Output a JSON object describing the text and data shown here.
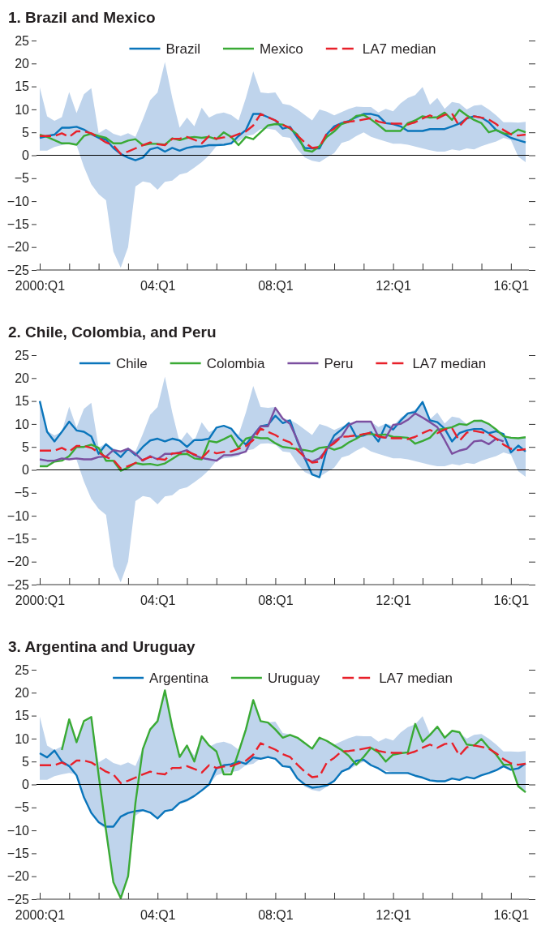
{
  "chart_data": [
    {
      "type": "line",
      "title": "1. Brazil and Mexico",
      "legend": "top",
      "ylim": [
        -25,
        25
      ],
      "yticks": [
        25,
        20,
        15,
        10,
        5,
        0,
        {
          "value": -5,
          "label": "−5"
        },
        {
          "value": -10,
          "label": "−10"
        },
        {
          "value": -15,
          "label": "−15"
        },
        {
          "value": -20,
          "label": "−20"
        },
        {
          "value": -25,
          "label": "−25"
        }
      ],
      "ref_lines": [
        {
          "axis": "y",
          "value": 0,
          "color": "#000000"
        }
      ],
      "categories": [
        "2000:Q1",
        null,
        null,
        null,
        null,
        null,
        null,
        null,
        null,
        null,
        null,
        null,
        null,
        null,
        null,
        null,
        "04:Q1",
        null,
        null,
        null,
        null,
        null,
        null,
        null,
        null,
        null,
        null,
        null,
        null,
        null,
        null,
        null,
        "08:Q1",
        null,
        null,
        null,
        null,
        null,
        null,
        null,
        null,
        null,
        null,
        null,
        null,
        null,
        null,
        null,
        "12:Q1",
        null,
        null,
        null,
        null,
        null,
        null,
        null,
        null,
        null,
        null,
        null,
        null,
        null,
        null,
        null,
        "16:Q1",
        null,
        null
      ],
      "series": [
        {
          "name": "Brazil",
          "color": "#0a75bb",
          "line_style": "solid",
          "values": [
            3.8,
            4.2,
            4.5,
            6.0,
            6.0,
            6.2,
            5.6,
            4.6,
            3.8,
            3.4,
            1.6,
            0.3,
            -0.5,
            -1.1,
            -0.5,
            1.3,
            1.7,
            0.8,
            1.6,
            1.0,
            1.6,
            1.9,
            1.9,
            2.2,
            2.2,
            2.3,
            2.6,
            4.2,
            5.5,
            9.0,
            9.0,
            8.3,
            7.6,
            5.8,
            6.2,
            3.8,
            1.6,
            1.5,
            1.5,
            4.6,
            6.3,
            7.0,
            7.5,
            8.3,
            9.0,
            9.0,
            8.6,
            7.0,
            6.8,
            6.3,
            5.3,
            5.3,
            5.3,
            5.7,
            5.7,
            5.7,
            6.3,
            6.9,
            8.0,
            8.5,
            8.2,
            7.2,
            5.5,
            4.7,
            3.8,
            3.3,
            2.8
          ]
        },
        {
          "name": "Mexico",
          "color": "#3aaa35",
          "line_style": "solid",
          "values": [
            4.5,
            4.0,
            3.3,
            2.6,
            2.6,
            2.3,
            4.2,
            4.7,
            4.2,
            3.8,
            2.6,
            2.6,
            3.2,
            3.5,
            2.2,
            2.5,
            2.5,
            2.3,
            3.7,
            3.3,
            3.8,
            4.0,
            3.8,
            4.0,
            3.5,
            5.0,
            4.0,
            2.2,
            4.0,
            3.5,
            5.0,
            6.5,
            6.8,
            6.7,
            5.8,
            4.5,
            1.1,
            0.8,
            2.0,
            4.0,
            5.2,
            6.8,
            7.3,
            8.6,
            8.8,
            7.8,
            6.6,
            5.3,
            5.3,
            5.3,
            7.0,
            7.6,
            8.5,
            8.2,
            8.3,
            9.3,
            7.7,
            9.9,
            8.7,
            7.7,
            7.0,
            5.0,
            5.5,
            4.8,
            4.6,
            5.6,
            5.0
          ]
        },
        {
          "name": "LA7 median",
          "color": "#e8202a",
          "line_style": "dashed",
          "values": [
            4.2,
            4.2,
            4.2,
            4.8,
            4.0,
            5.2,
            5.2,
            4.8,
            3.8,
            2.8,
            2.2,
            0.3,
            0.8,
            1.5,
            2.2,
            2.8,
            2.4,
            2.2,
            3.6,
            3.6,
            4.0,
            3.4,
            2.6,
            4.2,
            3.6,
            3.9,
            4.0,
            4.6,
            5.2,
            6.5,
            9.0,
            8.3,
            7.6,
            6.6,
            6.0,
            4.3,
            2.8,
            1.6,
            1.8,
            4.8,
            5.8,
            7.2,
            7.3,
            7.5,
            7.8,
            8.1,
            7.3,
            7.0,
            6.9,
            6.9,
            6.7,
            7.2,
            8.0,
            8.7,
            8.0,
            8.8,
            9.1,
            6.3,
            8.1,
            8.5,
            8.2,
            7.8,
            6.8,
            5.5,
            4.6,
            4.3,
            4.5
          ],
          "lower": [
            1.0,
            1.0,
            1.8,
            2.2,
            2.5,
            2.2,
            -2.5,
            -6.3,
            -8.5,
            -9.8,
            -21.0,
            -24.5,
            -20.0,
            -6.8,
            -5.7,
            -6.0,
            -7.5,
            -5.8,
            -5.5,
            -4.2,
            -3.8,
            -2.7,
            -1.5,
            0.0,
            2.0,
            2.5,
            2.7,
            3.0,
            4.2,
            4.5,
            5.7,
            5.8,
            5.5,
            4.0,
            3.8,
            1.3,
            -0.5,
            -1.2,
            -1.5,
            -0.5,
            0.5,
            2.7,
            3.2,
            4.2,
            5.0,
            4.0,
            3.5,
            3.0,
            2.5,
            2.5,
            2.3,
            1.9,
            1.5,
            1.1,
            0.8,
            0.8,
            1.3,
            1.0,
            1.5,
            1.3,
            2.0,
            2.5,
            3.0,
            3.8,
            3.3,
            -0.3,
            -1.5
          ],
          "upper": [
            14.8,
            8.5,
            7.5,
            8.3,
            13.8,
            9.2,
            13.3,
            14.6,
            4.8,
            5.8,
            4.7,
            4.2,
            4.8,
            4.0,
            7.8,
            12.0,
            13.7,
            20.3,
            12.5,
            6.0,
            8.2,
            6.3,
            10.4,
            8.2,
            9.0,
            9.3,
            8.8,
            7.6,
            12.5,
            18.3,
            13.7,
            13.5,
            13.7,
            11.2,
            10.9,
            10.0,
            8.8,
            7.6,
            10.0,
            9.5,
            8.7,
            9.4,
            10.1,
            10.6,
            10.5,
            10.5,
            9.3,
            10.1,
            9.6,
            11.3,
            12.5,
            13.1,
            14.9,
            11.0,
            12.5,
            10.1,
            11.6,
            11.3,
            10.0,
            10.8,
            11.0,
            10.0,
            8.7,
            7.2,
            7.2,
            7.1,
            7.3
          ]
        }
      ]
    },
    {
      "type": "line",
      "title": "2. Chile, Colombia, and Peru",
      "legend": "top",
      "ylim": [
        -25,
        25
      ],
      "yticks": [
        25,
        20,
        15,
        10,
        5,
        0,
        {
          "value": -5,
          "label": "−5"
        },
        {
          "value": -10,
          "label": "−10"
        },
        {
          "value": -15,
          "label": "−15"
        },
        {
          "value": -20,
          "label": "−20"
        },
        {
          "value": -25,
          "label": "−25"
        }
      ],
      "ref_lines": [
        {
          "axis": "y",
          "value": 0,
          "color": "#000000"
        }
      ],
      "categories": [
        "2000:Q1",
        null,
        null,
        null,
        null,
        null,
        null,
        null,
        null,
        null,
        null,
        null,
        null,
        null,
        null,
        null,
        "04:Q1",
        null,
        null,
        null,
        null,
        null,
        null,
        null,
        null,
        null,
        null,
        null,
        null,
        null,
        null,
        null,
        "08:Q1",
        null,
        null,
        null,
        null,
        null,
        null,
        null,
        null,
        null,
        null,
        null,
        null,
        null,
        null,
        null,
        "12:Q1",
        null,
        null,
        null,
        null,
        null,
        null,
        null,
        null,
        null,
        null,
        null,
        null,
        null,
        null,
        null,
        "16:Q1",
        null,
        null
      ],
      "series": [
        {
          "name": "Chile",
          "color": "#0a75bb",
          "line_style": "solid",
          "values": [
            15.0,
            8.3,
            6.2,
            8.3,
            10.5,
            8.6,
            8.3,
            7.3,
            3.5,
            5.6,
            4.2,
            2.8,
            4.6,
            3.2,
            5.0,
            6.4,
            6.8,
            6.2,
            6.8,
            6.4,
            5.0,
            6.5,
            6.5,
            6.8,
            9.2,
            9.6,
            9.0,
            7.0,
            5.5,
            7.5,
            9.5,
            9.8,
            11.8,
            10.2,
            10.8,
            6.2,
            2.5,
            -1.0,
            -1.6,
            4.5,
            7.5,
            8.8,
            10.2,
            7.2,
            7.5,
            8.2,
            6.2,
            9.8,
            8.8,
            10.7,
            12.3,
            12.6,
            14.8,
            10.8,
            10.4,
            9.0,
            6.2,
            8.0,
            8.6,
            8.9,
            8.9,
            8.0,
            8.4,
            7.8,
            3.8,
            5.3,
            4.0
          ]
        },
        {
          "name": "Colombia",
          "color": "#3aaa35",
          "line_style": "solid",
          "values": [
            0.8,
            0.8,
            1.8,
            2.0,
            3.0,
            5.0,
            5.0,
            5.5,
            4.8,
            2.0,
            2.0,
            -0.2,
            0.5,
            1.5,
            1.2,
            1.3,
            1.0,
            1.4,
            2.4,
            3.4,
            3.5,
            2.5,
            2.3,
            6.3,
            6.0,
            6.7,
            7.5,
            4.8,
            6.8,
            7.2,
            6.9,
            6.9,
            5.8,
            5.0,
            4.8,
            4.5,
            4.3,
            4.0,
            4.8,
            5.0,
            4.4,
            4.9,
            6.0,
            6.8,
            7.8,
            7.8,
            7.6,
            7.7,
            7.2,
            7.1,
            7.0,
            5.7,
            6.3,
            7.0,
            8.7,
            9.0,
            9.3,
            10.0,
            9.8,
            10.7,
            10.7,
            10.0,
            8.8,
            7.3,
            7.0,
            6.9,
            7.1
          ]
        },
        {
          "name": "Peru",
          "color": "#7b4fa0",
          "line_style": "solid",
          "values": [
            2.3,
            2.0,
            2.0,
            2.5,
            2.3,
            2.5,
            2.3,
            2.3,
            2.8,
            2.9,
            4.3,
            4.0,
            4.6,
            3.5,
            2.0,
            3.0,
            2.3,
            3.5,
            3.5,
            3.8,
            4.3,
            3.2,
            2.6,
            2.3,
            2.0,
            3.2,
            3.2,
            3.5,
            4.0,
            7.4,
            9.5,
            9.5,
            13.5,
            11.2,
            10.0,
            6.5,
            2.5,
            1.8,
            2.5,
            4.5,
            6.3,
            7.3,
            9.8,
            10.5,
            10.5,
            10.5,
            7.2,
            7.0,
            9.8,
            10.0,
            10.9,
            12.3,
            11.4,
            10.4,
            9.3,
            6.5,
            3.5,
            4.2,
            4.6,
            6.2,
            6.4,
            5.6,
            6.8,
            6.2,
            null,
            null,
            null
          ]
        },
        {
          "name": "LA7 median",
          "color": "#e8202a",
          "line_style": "dashed",
          "values": [
            4.2,
            4.2,
            4.2,
            4.8,
            4.0,
            5.2,
            5.2,
            4.8,
            3.8,
            2.8,
            2.2,
            0.3,
            0.8,
            1.5,
            2.2,
            2.8,
            2.4,
            2.2,
            3.6,
            3.6,
            4.0,
            3.4,
            2.6,
            4.2,
            3.6,
            3.9,
            4.0,
            4.6,
            5.2,
            6.5,
            9.0,
            8.3,
            7.6,
            6.6,
            6.0,
            4.3,
            2.8,
            1.6,
            1.8,
            4.8,
            5.8,
            7.2,
            7.3,
            7.5,
            7.8,
            8.1,
            7.3,
            7.0,
            6.9,
            6.9,
            6.7,
            7.2,
            8.0,
            8.7,
            8.0,
            8.8,
            9.1,
            6.3,
            8.1,
            8.5,
            8.2,
            7.8,
            6.8,
            5.5,
            4.6,
            4.3,
            4.5
          ],
          "lower": [
            1.0,
            1.0,
            1.8,
            2.2,
            2.5,
            2.2,
            -2.5,
            -6.3,
            -8.5,
            -9.8,
            -21.0,
            -24.5,
            -20.0,
            -6.8,
            -5.7,
            -6.0,
            -7.5,
            -5.8,
            -5.5,
            -4.2,
            -3.8,
            -2.7,
            -1.5,
            0.0,
            2.0,
            2.5,
            2.7,
            3.0,
            4.2,
            4.5,
            5.7,
            5.8,
            5.5,
            4.0,
            3.8,
            1.3,
            -0.5,
            -1.2,
            -1.5,
            -0.5,
            0.5,
            2.7,
            3.2,
            4.2,
            5.0,
            4.0,
            3.5,
            3.0,
            2.5,
            2.5,
            2.3,
            1.9,
            1.5,
            1.1,
            0.8,
            0.8,
            1.3,
            1.0,
            1.5,
            1.3,
            2.0,
            2.5,
            3.0,
            3.8,
            3.3,
            -0.3,
            -1.5
          ],
          "upper": [
            14.8,
            8.5,
            7.5,
            8.3,
            13.8,
            9.2,
            13.3,
            14.6,
            4.8,
            5.8,
            4.7,
            4.2,
            4.8,
            4.0,
            7.8,
            12.0,
            13.7,
            20.3,
            12.5,
            6.0,
            8.2,
            6.3,
            10.4,
            8.2,
            9.0,
            9.3,
            8.8,
            7.6,
            12.5,
            18.3,
            13.7,
            13.5,
            13.7,
            11.2,
            10.9,
            10.0,
            8.8,
            7.6,
            10.0,
            9.5,
            8.7,
            9.4,
            10.1,
            10.6,
            10.5,
            10.5,
            9.3,
            10.1,
            9.6,
            11.3,
            12.5,
            13.1,
            14.9,
            11.0,
            12.5,
            10.1,
            11.6,
            11.3,
            10.0,
            10.8,
            11.0,
            10.0,
            8.7,
            7.2,
            7.2,
            7.1,
            7.3
          ]
        }
      ]
    },
    {
      "type": "line",
      "title": "3. Argentina and Uruguay",
      "legend": "top",
      "ylim": [
        -25,
        25
      ],
      "yticks": [
        25,
        20,
        15,
        10,
        5,
        0,
        {
          "value": -5,
          "label": "−5"
        },
        {
          "value": -10,
          "label": "−10"
        },
        {
          "value": -15,
          "label": "−15"
        },
        {
          "value": -20,
          "label": "−20"
        },
        {
          "value": -25,
          "label": "−25"
        }
      ],
      "ref_lines": [
        {
          "axis": "y",
          "value": 0,
          "color": "#000000"
        }
      ],
      "categories": [
        "2000:Q1",
        null,
        null,
        null,
        null,
        null,
        null,
        null,
        null,
        null,
        null,
        null,
        null,
        null,
        null,
        null,
        "04:Q1",
        null,
        null,
        null,
        null,
        null,
        null,
        null,
        null,
        null,
        null,
        null,
        null,
        null,
        null,
        null,
        "08:Q1",
        null,
        null,
        null,
        null,
        null,
        null,
        null,
        null,
        null,
        null,
        null,
        null,
        null,
        null,
        null,
        "12:Q1",
        null,
        null,
        null,
        null,
        null,
        null,
        null,
        null,
        null,
        null,
        null,
        null,
        null,
        null,
        null,
        "16:Q1",
        null,
        null
      ],
      "series": [
        {
          "name": "Argentina",
          "color": "#0a75bb",
          "line_style": "solid",
          "values": [
            6.8,
            5.9,
            7.4,
            5.0,
            4.0,
            2.0,
            -2.8,
            -6.2,
            -8.2,
            -9.2,
            -9.2,
            -7.0,
            -6.2,
            -5.8,
            -5.6,
            -6.1,
            -7.4,
            -5.8,
            -5.5,
            -4.0,
            -3.4,
            -2.5,
            -1.3,
            0.0,
            3.5,
            4.2,
            4.4,
            5.0,
            4.5,
            5.9,
            5.6,
            6.0,
            5.6,
            4.0,
            3.8,
            1.3,
            0.0,
            -0.7,
            -0.5,
            -0.2,
            0.8,
            2.8,
            3.5,
            5.2,
            5.4,
            4.2,
            3.5,
            2.5,
            2.5,
            2.5,
            2.5,
            1.9,
            1.5,
            0.9,
            0.7,
            0.7,
            1.3,
            1.0,
            1.6,
            1.3,
            2.0,
            2.5,
            3.1,
            4.0,
            3.2,
            3.5,
            4.6
          ]
        },
        {
          "name": "Uruguay",
          "color": "#3aaa35",
          "line_style": "solid",
          "values": [
            null,
            null,
            null,
            7.5,
            14.2,
            9.2,
            13.8,
            14.7,
            2.0,
            -10.0,
            -21.3,
            -24.8,
            -20.0,
            -4.0,
            7.7,
            12.0,
            13.8,
            20.5,
            12.5,
            6.0,
            8.5,
            5.0,
            10.5,
            8.5,
            7.2,
            2.2,
            2.2,
            7.0,
            12.0,
            18.4,
            13.8,
            13.5,
            12.0,
            10.2,
            10.8,
            10.2,
            9.0,
            7.8,
            10.2,
            9.5,
            8.5,
            7.5,
            6.2,
            4.3,
            6.0,
            8.0,
            7.0,
            5.0,
            6.5,
            6.8,
            7.0,
            13.2,
            9.3,
            10.8,
            12.6,
            10.2,
            11.7,
            11.4,
            8.7,
            8.5,
            9.9,
            8.0,
            6.5,
            4.3,
            4.3,
            -0.4,
            -1.7
          ]
        },
        {
          "name": "LA7 median",
          "color": "#e8202a",
          "line_style": "dashed",
          "values": [
            4.2,
            4.2,
            4.2,
            4.8,
            4.0,
            5.2,
            5.2,
            4.8,
            3.8,
            2.8,
            2.2,
            0.3,
            0.8,
            1.5,
            2.2,
            2.8,
            2.4,
            2.2,
            3.6,
            3.6,
            4.0,
            3.4,
            2.6,
            4.2,
            3.6,
            3.9,
            4.0,
            4.6,
            5.2,
            6.5,
            9.0,
            8.3,
            7.6,
            6.6,
            6.0,
            4.3,
            2.8,
            1.6,
            1.8,
            4.8,
            5.8,
            7.2,
            7.3,
            7.5,
            7.8,
            8.1,
            7.3,
            7.0,
            6.9,
            6.9,
            6.7,
            7.2,
            8.0,
            8.7,
            8.0,
            8.8,
            9.1,
            6.3,
            8.1,
            8.5,
            8.2,
            7.8,
            6.8,
            5.5,
            4.6,
            4.3,
            4.5
          ],
          "lower": [
            1.0,
            1.0,
            1.8,
            2.2,
            2.5,
            2.2,
            -2.5,
            -6.3,
            -8.5,
            -9.8,
            -21.0,
            -24.5,
            -20.0,
            -6.8,
            -5.7,
            -6.0,
            -7.5,
            -5.8,
            -5.5,
            -4.2,
            -3.8,
            -2.7,
            -1.5,
            0.0,
            2.0,
            2.5,
            2.7,
            3.0,
            4.2,
            4.5,
            5.7,
            5.8,
            5.5,
            4.0,
            3.8,
            1.3,
            -0.5,
            -1.2,
            -1.5,
            -0.5,
            0.5,
            2.7,
            3.2,
            4.2,
            5.0,
            4.0,
            3.5,
            3.0,
            2.5,
            2.5,
            2.3,
            1.9,
            1.5,
            1.1,
            0.8,
            0.8,
            1.3,
            1.0,
            1.5,
            1.3,
            2.0,
            2.5,
            3.0,
            3.8,
            3.3,
            -0.3,
            -1.5
          ],
          "upper": [
            14.8,
            8.5,
            7.5,
            8.3,
            13.8,
            9.2,
            13.3,
            14.6,
            4.8,
            5.8,
            4.7,
            4.2,
            4.8,
            4.0,
            7.8,
            12.0,
            13.7,
            20.3,
            12.5,
            6.0,
            8.2,
            6.3,
            10.4,
            8.2,
            9.0,
            9.3,
            8.8,
            7.6,
            12.5,
            18.3,
            13.7,
            13.5,
            13.7,
            11.2,
            10.9,
            10.0,
            8.8,
            7.6,
            10.0,
            9.5,
            8.7,
            9.4,
            10.1,
            10.6,
            10.5,
            10.5,
            9.3,
            10.1,
            9.6,
            11.3,
            12.5,
            13.1,
            14.9,
            11.0,
            12.5,
            10.1,
            11.6,
            11.3,
            10.0,
            10.8,
            11.0,
            10.0,
            8.7,
            7.2,
            7.2,
            7.1,
            7.3
          ]
        }
      ]
    }
  ]
}
